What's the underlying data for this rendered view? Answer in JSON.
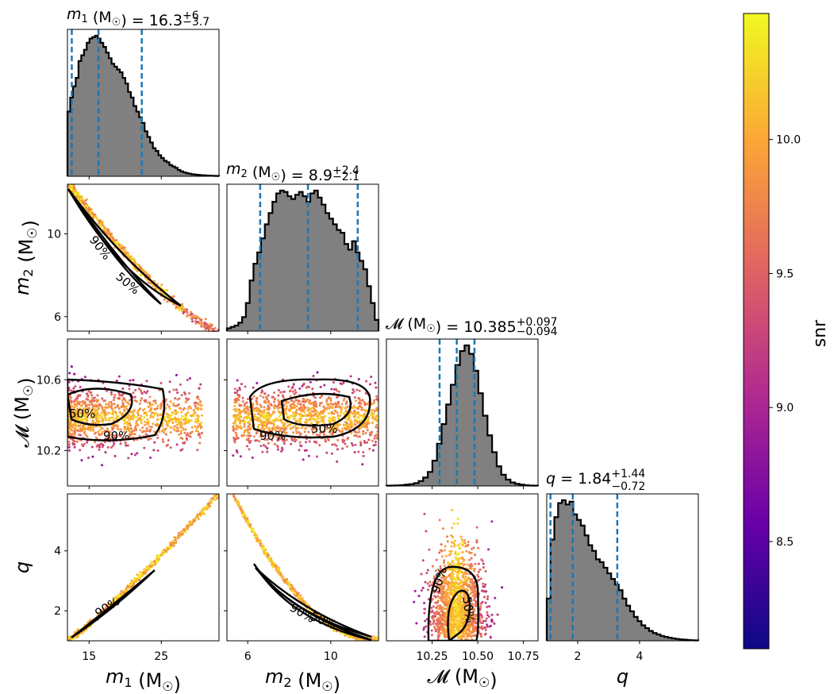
{
  "chart_data": {
    "type": "corner",
    "colormap": "plasma",
    "colorbar": {
      "label": "snr",
      "range": [
        8.1,
        10.47
      ],
      "ticks": [
        "8.5",
        "9.0",
        "9.5",
        "10.0"
      ],
      "tick_values": [
        8.5,
        9.0,
        9.5,
        10.0
      ]
    },
    "colors": {
      "histogram_fill": "#808080",
      "quantile_line": "#1f77b4",
      "contour": "#000000"
    },
    "parameters": [
      {
        "key": "m1",
        "axis_label_main": "m",
        "axis_label_sub": "1",
        "axis_label_unit": " (M",
        "axis_label_sun": "☉",
        "axis_label_close": ")",
        "title_lhs_main": "m",
        "title_lhs_sub": "1",
        "title_lhs_unit": " (M",
        "title_lhs_sun": "☉",
        "title_lhs_close": ") = ",
        "title_value": "16.3",
        "title_plus": "+6",
        "title_minus": "−3.7",
        "range": [
          12.0,
          33.0
        ],
        "ticks": [
          "15",
          "25"
        ],
        "tick_values": [
          15,
          25
        ],
        "quantiles": [
          12.6,
          16.3,
          22.3
        ],
        "hist_bins": [
          0.46,
          0.56,
          0.64,
          0.7,
          0.82,
          0.86,
          0.9,
          0.95,
          0.98,
          0.99,
          1.0,
          0.98,
          0.95,
          0.92,
          0.88,
          0.84,
          0.8,
          0.78,
          0.76,
          0.74,
          0.7,
          0.66,
          0.6,
          0.56,
          0.5,
          0.46,
          0.42,
          0.38,
          0.32,
          0.28,
          0.24,
          0.2,
          0.18,
          0.15,
          0.13,
          0.11,
          0.1,
          0.08,
          0.07,
          0.06,
          0.045,
          0.035,
          0.028,
          0.022,
          0.018,
          0.014,
          0.012,
          0.01,
          0.008,
          0.007,
          0.006,
          0.005,
          0.004,
          0.003,
          0.002
        ]
      },
      {
        "key": "m2",
        "axis_label_main": "m",
        "axis_label_sub": "2",
        "axis_label_unit": " (M",
        "axis_label_sun": "☉",
        "axis_label_close": ")",
        "title_lhs_main": "m",
        "title_lhs_sub": "2",
        "title_lhs_unit": " (M",
        "title_lhs_sun": "☉",
        "title_lhs_close": ") = ",
        "title_value": "8.9",
        "title_plus": "+2.4",
        "title_minus": "−2.1",
        "range": [
          5.0,
          12.3
        ],
        "ticks": [
          "6",
          "10"
        ],
        "tick_values": [
          6,
          10
        ],
        "quantiles": [
          6.6,
          8.9,
          11.3
        ],
        "hist_bins": [
          0.02,
          0.03,
          0.04,
          0.06,
          0.1,
          0.2,
          0.36,
          0.48,
          0.56,
          0.66,
          0.76,
          0.84,
          0.92,
          0.98,
          1.0,
          0.99,
          0.96,
          0.94,
          0.97,
          0.99,
          0.96,
          0.92,
          0.98,
          1.0,
          0.95,
          0.9,
          0.84,
          0.8,
          0.76,
          0.72,
          0.7,
          0.62,
          0.58,
          0.64,
          0.56,
          0.5,
          0.44,
          0.32,
          0.2,
          0.08
        ]
      },
      {
        "key": "mc",
        "axis_label_main": "𝓜",
        "axis_label_sub": "",
        "axis_label_unit": " (M",
        "axis_label_sun": "☉",
        "axis_label_close": ")",
        "title_lhs_main": "𝓜",
        "title_lhs_sub": "",
        "title_lhs_unit": " (M",
        "title_lhs_sun": "☉",
        "title_lhs_close": ") = ",
        "title_value": "10.385",
        "title_plus": "+0.097",
        "title_minus": "−0.094",
        "range": [
          10.0,
          10.83
        ],
        "ticks": [
          "10.25",
          "10.50",
          "10.75"
        ],
        "tick_values": [
          10.25,
          10.5,
          10.75
        ],
        "quantiles": [
          10.291,
          10.385,
          10.482
        ],
        "hist_bins": [
          0.002,
          0.003,
          0.004,
          0.006,
          0.009,
          0.013,
          0.02,
          0.035,
          0.06,
          0.1,
          0.18,
          0.3,
          0.44,
          0.58,
          0.72,
          0.86,
          0.96,
          1.0,
          0.94,
          0.82,
          0.66,
          0.5,
          0.36,
          0.24,
          0.14,
          0.08,
          0.045,
          0.025,
          0.015,
          0.009,
          0.005,
          0.003,
          0.002
        ]
      },
      {
        "key": "q",
        "axis_label_main": "q",
        "axis_label_sub": "",
        "axis_label_unit": "",
        "axis_label_sun": "",
        "axis_label_close": "",
        "title_lhs_main": "q",
        "title_lhs_sub": "",
        "title_lhs_unit": "",
        "title_lhs_sun": "",
        "title_lhs_close": " = ",
        "title_value": "1.84",
        "title_plus": "+1.44",
        "title_minus": "−0.72",
        "range": [
          1.0,
          5.9
        ],
        "ticks": [
          "2",
          "4"
        ],
        "tick_values": [
          2,
          4
        ],
        "quantiles": [
          1.12,
          1.84,
          3.28
        ],
        "hist_bins": [
          0.3,
          0.72,
          0.88,
          0.98,
          1.0,
          0.97,
          0.99,
          0.9,
          0.86,
          0.82,
          0.75,
          0.68,
          0.64,
          0.58,
          0.56,
          0.52,
          0.48,
          0.44,
          0.4,
          0.36,
          0.3,
          0.25,
          0.21,
          0.17,
          0.14,
          0.11,
          0.09,
          0.07,
          0.055,
          0.045,
          0.035,
          0.028,
          0.022,
          0.017,
          0.013,
          0.01,
          0.008,
          0.006,
          0.004,
          0.003
        ]
      }
    ],
    "ylabel_ticks": {
      "m2": {
        "ticks": [
          "6",
          "10"
        ],
        "tick_values": [
          6,
          10
        ],
        "range": [
          5.3,
          12.4
        ]
      },
      "mc": {
        "ticks": [
          "10.2",
          "10.6"
        ],
        "tick_values": [
          10.2,
          10.6
        ],
        "range": [
          10.0,
          10.83
        ]
      },
      "q": {
        "ticks": [
          "2",
          "4"
        ],
        "tick_values": [
          2,
          4
        ],
        "range": [
          1.0,
          5.9
        ]
      }
    },
    "contour_labels": [
      {
        "panel": "m2_vs_m1",
        "labels": [
          "90%",
          "50%"
        ]
      },
      {
        "panel": "mc_vs_m1",
        "labels": [
          "50%",
          "90%"
        ]
      },
      {
        "panel": "mc_vs_m2",
        "labels": [
          "90%",
          "50%"
        ]
      },
      {
        "panel": "q_vs_m1",
        "labels": [
          "90%"
        ]
      },
      {
        "panel": "q_vs_m2",
        "labels": [
          "90%",
          "50%"
        ]
      },
      {
        "panel": "q_vs_mc",
        "labels": [
          "90%",
          "50%"
        ]
      }
    ]
  }
}
